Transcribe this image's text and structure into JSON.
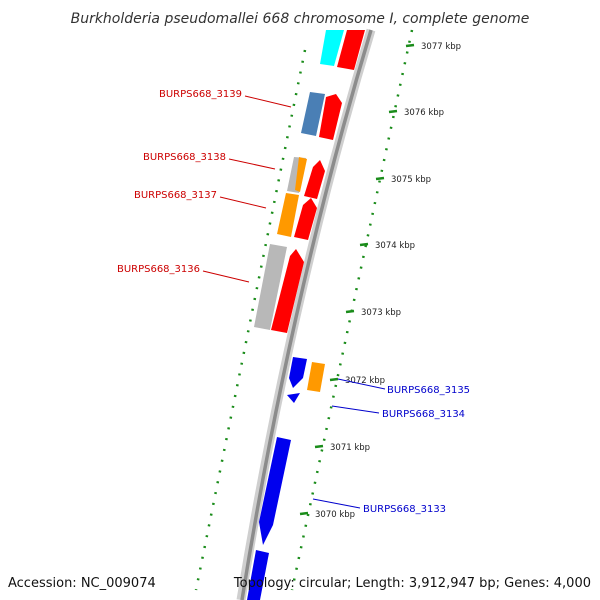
{
  "title": "Burkholderia pseudomallei 668 chromosome I, complete genome",
  "footer": {
    "accession": "Accession: NC_009074",
    "summary": "Topology: circular; Length: 3,912,947 bp; Genes: 4,000"
  },
  "colors": {
    "backbone": "#8c8c8c",
    "tick": "#1a8c1a",
    "forward_label": "#cc0000",
    "reverse_label": "#0000cc",
    "gene_red": "#ff0000",
    "gene_cyan": "#00ffff",
    "gene_steelblue": "#4a7fb5",
    "gene_grey": "#b8b8b8",
    "gene_orange": "#ff9900",
    "gene_blue": "#0000ee"
  },
  "ticks": [
    {
      "label": "3077 kbp"
    },
    {
      "label": "3076 kbp"
    },
    {
      "label": "3075 kbp"
    },
    {
      "label": "3074 kbp"
    },
    {
      "label": "3073 kbp"
    },
    {
      "label": "3072 kbp"
    },
    {
      "label": "3071 kbp"
    },
    {
      "label": "3070 kbp"
    }
  ],
  "gene_labels": [
    {
      "text": "BURPS668_3139",
      "strand": "left"
    },
    {
      "text": "BURPS668_3138",
      "strand": "left"
    },
    {
      "text": "BURPS668_3137",
      "strand": "left"
    },
    {
      "text": "BURPS668_3136",
      "strand": "left"
    },
    {
      "text": "BURPS668_3135",
      "strand": "right"
    },
    {
      "text": "BURPS668_3134",
      "strand": "right"
    },
    {
      "text": "BURPS668_3133",
      "strand": "right"
    }
  ]
}
